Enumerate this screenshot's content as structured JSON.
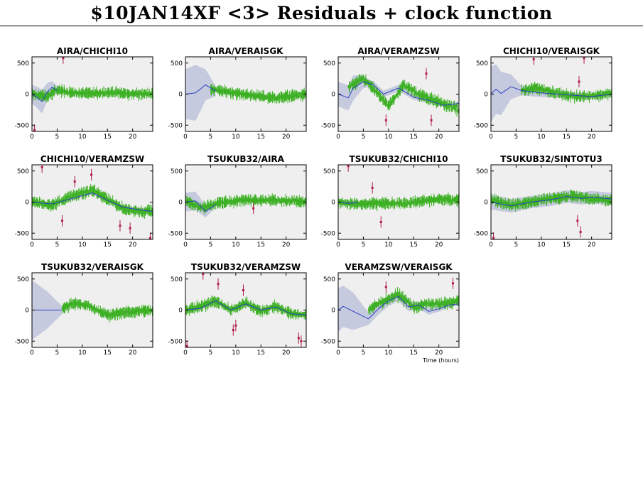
{
  "page": {
    "title": "$10JAN14XF <3> Residuals + clock function"
  },
  "colors": {
    "plot_background": "#efefef",
    "residual_points": "#3cb023",
    "outliers": "#b01c46",
    "clock_function": "#2b3fbf",
    "uncertainty_band": "#c6cade",
    "axes": "#000000"
  },
  "chart_data": [
    {
      "type": "scatter",
      "title": "AIRA/CHICHI10",
      "xlim": [
        0,
        24
      ],
      "ylim": [
        -600,
        600
      ],
      "xticks": [
        0,
        5,
        10,
        15,
        20
      ],
      "yticks": [
        -500,
        0,
        500
      ],
      "xlabel": "",
      "ylabel": "",
      "residual_level": [
        [
          0,
          0
        ],
        [
          3,
          -40
        ],
        [
          5,
          70
        ],
        [
          8,
          20
        ],
        [
          12,
          10
        ],
        [
          16,
          30
        ],
        [
          20,
          0
        ],
        [
          24,
          10
        ]
      ],
      "clock_function": [
        [
          0,
          0
        ],
        [
          1,
          -50
        ],
        [
          2,
          -120
        ],
        [
          3,
          30
        ],
        [
          4,
          110
        ],
        [
          5,
          60
        ]
      ],
      "band_halfwidth": [
        [
          0,
          150
        ],
        [
          2,
          190
        ],
        [
          4,
          100
        ],
        [
          6,
          40
        ]
      ],
      "outliers": [
        [
          0.5,
          -580
        ],
        [
          6.2,
          580
        ]
      ]
    },
    {
      "type": "scatter",
      "title": "AIRA/VERAISGK",
      "xlim": [
        0,
        24
      ],
      "ylim": [
        -600,
        600
      ],
      "xticks": [
        0,
        5,
        10,
        15,
        20
      ],
      "yticks": [
        -500,
        0,
        500
      ],
      "xlabel": "",
      "ylabel": "",
      "residual_level": [
        [
          5,
          80
        ],
        [
          8,
          40
        ],
        [
          10,
          20
        ],
        [
          14,
          -30
        ],
        [
          18,
          -60
        ],
        [
          21,
          -30
        ],
        [
          24,
          0
        ]
      ],
      "clock_function": [
        [
          0,
          0
        ],
        [
          2,
          20
        ],
        [
          4,
          150
        ],
        [
          6,
          50
        ]
      ],
      "band_halfwidth": [
        [
          0,
          400
        ],
        [
          2,
          450
        ],
        [
          4,
          250
        ],
        [
          6,
          80
        ]
      ],
      "outliers": []
    },
    {
      "type": "scatter",
      "title": "AIRA/VERAMZSW",
      "xlim": [
        0,
        24
      ],
      "ylim": [
        -600,
        600
      ],
      "xticks": [
        0,
        5,
        10,
        15,
        20
      ],
      "yticks": [
        -500,
        0,
        500
      ],
      "xlabel": "",
      "ylabel": "",
      "residual_level": [
        [
          2,
          100
        ],
        [
          5,
          250
        ],
        [
          8,
          0
        ],
        [
          10,
          -200
        ],
        [
          13,
          150
        ],
        [
          16,
          0
        ],
        [
          19,
          -100
        ],
        [
          24,
          -250
        ]
      ],
      "clock_function": [
        [
          0,
          0
        ],
        [
          2,
          -60
        ],
        [
          3,
          100
        ],
        [
          5,
          200
        ],
        [
          7,
          150
        ],
        [
          9,
          0
        ],
        [
          12,
          100
        ],
        [
          15,
          -50
        ],
        [
          18,
          -100
        ],
        [
          21,
          -180
        ],
        [
          24,
          -150
        ]
      ],
      "band_halfwidth": [
        [
          0,
          200
        ],
        [
          3,
          200
        ],
        [
          6,
          60
        ],
        [
          24,
          30
        ]
      ],
      "outliers": [
        [
          9.5,
          -420
        ],
        [
          17.5,
          330
        ],
        [
          18.5,
          -420
        ]
      ]
    },
    {
      "type": "scatter",
      "title": "CHICHI10/VERAISGK",
      "xlim": [
        0,
        24
      ],
      "ylim": [
        -600,
        600
      ],
      "xticks": [
        0,
        5,
        10,
        15,
        20
      ],
      "yticks": [
        -500,
        0,
        500
      ],
      "xlabel": "",
      "ylabel": "",
      "residual_level": [
        [
          6,
          50
        ],
        [
          9,
          100
        ],
        [
          12,
          40
        ],
        [
          15,
          -20
        ],
        [
          18,
          -40
        ],
        [
          21,
          -20
        ],
        [
          24,
          20
        ]
      ],
      "clock_function": [
        [
          0,
          0
        ],
        [
          1,
          80
        ],
        [
          2,
          10
        ],
        [
          4,
          120
        ],
        [
          6,
          60
        ],
        [
          10,
          20
        ],
        [
          15,
          -10
        ],
        [
          20,
          -40
        ],
        [
          24,
          0
        ]
      ],
      "band_halfwidth": [
        [
          0,
          450
        ],
        [
          2,
          350
        ],
        [
          4,
          200
        ],
        [
          6,
          80
        ],
        [
          24,
          30
        ]
      ],
      "outliers": [
        [
          8.5,
          560
        ],
        [
          17.5,
          200
        ],
        [
          18.5,
          580
        ]
      ]
    },
    {
      "type": "scatter",
      "title": "CHICHI10/VERAMZSW",
      "xlim": [
        0,
        24
      ],
      "ylim": [
        -600,
        600
      ],
      "xticks": [
        0,
        5,
        10,
        15,
        20
      ],
      "yticks": [
        -500,
        0,
        500
      ],
      "xlabel": "",
      "ylabel": "",
      "residual_level": [
        [
          0,
          0
        ],
        [
          4,
          -50
        ],
        [
          8,
          100
        ],
        [
          12,
          200
        ],
        [
          15,
          50
        ],
        [
          18,
          -100
        ],
        [
          21,
          -150
        ],
        [
          24,
          -150
        ]
      ],
      "clock_function": [
        [
          0,
          0
        ],
        [
          4,
          -30
        ],
        [
          8,
          60
        ],
        [
          12,
          150
        ],
        [
          15,
          30
        ],
        [
          18,
          -80
        ],
        [
          21,
          -120
        ],
        [
          24,
          -150
        ]
      ],
      "band_halfwidth": [
        [
          0,
          30
        ],
        [
          24,
          30
        ]
      ],
      "outliers": [
        [
          2,
          560
        ],
        [
          6,
          -300
        ],
        [
          8.5,
          330
        ],
        [
          11.8,
          440
        ],
        [
          17.5,
          -380
        ],
        [
          19.5,
          -420
        ],
        [
          23.5,
          -580
        ]
      ]
    },
    {
      "type": "scatter",
      "title": "TSUKUB32/AIRA",
      "xlim": [
        0,
        24
      ],
      "ylim": [
        -600,
        600
      ],
      "xticks": [
        0,
        5,
        10,
        15,
        20
      ],
      "yticks": [
        -500,
        0,
        500
      ],
      "xlabel": "",
      "ylabel": "",
      "residual_level": [
        [
          0,
          20
        ],
        [
          3,
          -100
        ],
        [
          6,
          -20
        ],
        [
          10,
          20
        ],
        [
          14,
          40
        ],
        [
          18,
          30
        ],
        [
          21,
          20
        ],
        [
          24,
          0
        ]
      ],
      "clock_function": [
        [
          0,
          0
        ],
        [
          2,
          20
        ],
        [
          4,
          -150
        ],
        [
          6,
          -40
        ]
      ],
      "band_halfwidth": [
        [
          0,
          150
        ],
        [
          2,
          150
        ],
        [
          4,
          100
        ],
        [
          6,
          40
        ]
      ],
      "outliers": [
        [
          13.5,
          -100
        ]
      ]
    },
    {
      "type": "scatter",
      "title": "TSUKUB32/CHICHI10",
      "xlim": [
        0,
        24
      ],
      "ylim": [
        -600,
        600
      ],
      "xticks": [
        0,
        5,
        10,
        15,
        20
      ],
      "yticks": [
        -500,
        0,
        500
      ],
      "xlabel": "",
      "ylabel": "",
      "residual_level": [
        [
          0,
          0
        ],
        [
          4,
          -40
        ],
        [
          8,
          -20
        ],
        [
          12,
          -30
        ],
        [
          16,
          10
        ],
        [
          20,
          40
        ],
        [
          24,
          40
        ]
      ],
      "clock_function": [
        [
          0,
          0
        ],
        [
          2,
          -20
        ],
        [
          4,
          -10
        ]
      ],
      "band_halfwidth": [
        [
          0,
          40
        ],
        [
          4,
          40
        ]
      ],
      "outliers": [
        [
          2,
          580
        ],
        [
          6.8,
          230
        ],
        [
          8.5,
          -320
        ]
      ]
    },
    {
      "type": "scatter",
      "title": "TSUKUB32/SINTOTU3",
      "xlim": [
        0,
        24
      ],
      "ylim": [
        -600,
        600
      ],
      "xticks": [
        0,
        5,
        10,
        15,
        20
      ],
      "yticks": [
        -500,
        0,
        500
      ],
      "xlabel": "",
      "ylabel": "",
      "residual_level": [
        [
          0,
          50
        ],
        [
          4,
          -50
        ],
        [
          8,
          0
        ],
        [
          12,
          60
        ],
        [
          16,
          100
        ],
        [
          20,
          50
        ],
        [
          24,
          30
        ]
      ],
      "clock_function": [
        [
          0,
          0
        ],
        [
          4,
          -60
        ],
        [
          8,
          0
        ],
        [
          12,
          40
        ],
        [
          15,
          90
        ],
        [
          18,
          60
        ],
        [
          20,
          80
        ],
        [
          24,
          50
        ]
      ],
      "band_halfwidth": [
        [
          0,
          120
        ],
        [
          8,
          100
        ],
        [
          16,
          100
        ],
        [
          24,
          100
        ]
      ],
      "outliers": [
        [
          0.5,
          -580
        ],
        [
          17.2,
          -300
        ],
        [
          17.8,
          -480
        ]
      ]
    },
    {
      "type": "scatter",
      "title": "TSUKUB32/VERAISGK",
      "xlim": [
        0,
        24
      ],
      "ylim": [
        -600,
        600
      ],
      "xticks": [
        0,
        5,
        10,
        15,
        20
      ],
      "yticks": [
        -500,
        0,
        500
      ],
      "xlabel": "",
      "ylabel": "",
      "residual_level": [
        [
          6,
          20
        ],
        [
          8,
          100
        ],
        [
          11,
          80
        ],
        [
          13,
          0
        ],
        [
          15,
          -80
        ],
        [
          18,
          -40
        ],
        [
          21,
          -20
        ],
        [
          24,
          0
        ]
      ],
      "clock_function": [
        [
          0,
          0
        ],
        [
          6,
          0
        ]
      ],
      "band_halfwidth": [
        [
          0,
          480
        ],
        [
          3,
          300
        ],
        [
          6,
          60
        ]
      ],
      "outliers": []
    },
    {
      "type": "scatter",
      "title": "TSUKUB32/VERAMZSW",
      "xlim": [
        0,
        24
      ],
      "ylim": [
        -600,
        600
      ],
      "xticks": [
        0,
        5,
        10,
        15,
        20
      ],
      "yticks": [
        -500,
        0,
        500
      ],
      "xlabel": "",
      "ylabel": "",
      "residual_level": [
        [
          0,
          0
        ],
        [
          3,
          60
        ],
        [
          6,
          150
        ],
        [
          9,
          0
        ],
        [
          12,
          120
        ],
        [
          15,
          -20
        ],
        [
          18,
          60
        ],
        [
          21,
          -60
        ],
        [
          24,
          -80
        ]
      ],
      "clock_function": [
        [
          0,
          0
        ],
        [
          3,
          30
        ],
        [
          6,
          150
        ],
        [
          9,
          0
        ],
        [
          12,
          100
        ],
        [
          15,
          0
        ],
        [
          18,
          50
        ],
        [
          21,
          -60
        ],
        [
          24,
          -80
        ]
      ],
      "band_halfwidth": [
        [
          0,
          30
        ],
        [
          24,
          30
        ]
      ],
      "outliers": [
        [
          0.3,
          -580
        ],
        [
          3.5,
          580
        ],
        [
          6.5,
          420
        ],
        [
          9.5,
          -320
        ],
        [
          10,
          -250
        ],
        [
          11.5,
          320
        ],
        [
          22.5,
          -450
        ],
        [
          23,
          -500
        ]
      ]
    },
    {
      "type": "scatter",
      "title": "VERAMZSW/VERAISGK",
      "xlim": [
        0,
        24
      ],
      "ylim": [
        -600,
        600
      ],
      "xticks": [
        0,
        5,
        10,
        15,
        20
      ],
      "yticks": [
        -500,
        0,
        500
      ],
      "xlabel": "Time (hours)",
      "ylabel": "",
      "residual_level": [
        [
          6,
          0
        ],
        [
          9,
          150
        ],
        [
          12,
          250
        ],
        [
          15,
          50
        ],
        [
          18,
          100
        ],
        [
          21,
          100
        ],
        [
          24,
          150
        ]
      ],
      "clock_function": [
        [
          0,
          0
        ],
        [
          1,
          60
        ],
        [
          2,
          20
        ],
        [
          4,
          -60
        ],
        [
          6,
          -140
        ],
        [
          8,
          20
        ],
        [
          10,
          150
        ],
        [
          12,
          220
        ],
        [
          14,
          50
        ],
        [
          16,
          80
        ],
        [
          18,
          -20
        ],
        [
          20,
          20
        ],
        [
          22,
          80
        ],
        [
          24,
          100
        ]
      ],
      "band_halfwidth": [
        [
          0,
          350
        ],
        [
          3,
          300
        ],
        [
          6,
          100
        ],
        [
          24,
          30
        ]
      ],
      "outliers": [
        [
          9.5,
          370
        ],
        [
          22.8,
          430
        ]
      ]
    }
  ]
}
